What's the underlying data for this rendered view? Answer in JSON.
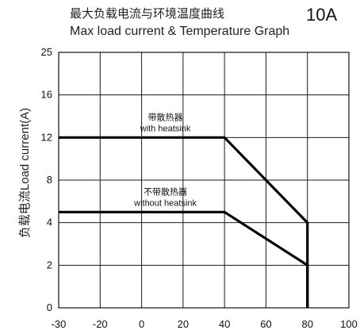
{
  "chart_data": {
    "type": "line",
    "title_cn": "最大负载电流与环境温度曲线",
    "title_en": "Max load current & Temperature Graph",
    "rating": "10A",
    "ylabel": "负载电流Load current(A)",
    "xlabel": "",
    "x_ticks": [
      -30,
      -20,
      0,
      20,
      40,
      60,
      80,
      100
    ],
    "y_ticks": [
      0,
      2,
      4,
      8,
      12,
      16,
      25
    ],
    "grid": true,
    "series": [
      {
        "name": "带散热器 with heatsink",
        "label_cn": "带散热器",
        "label_en": "with heatsink",
        "points": [
          [
            -30,
            12
          ],
          [
            40,
            12
          ],
          [
            80,
            4
          ],
          [
            80,
            0
          ]
        ]
      },
      {
        "name": "不带散热器 without heatsink",
        "label_cn": "不带散热器",
        "label_en": "without heatsink",
        "points": [
          [
            -30,
            5
          ],
          [
            40,
            5
          ],
          [
            80,
            2
          ],
          [
            80,
            0
          ]
        ]
      }
    ]
  }
}
